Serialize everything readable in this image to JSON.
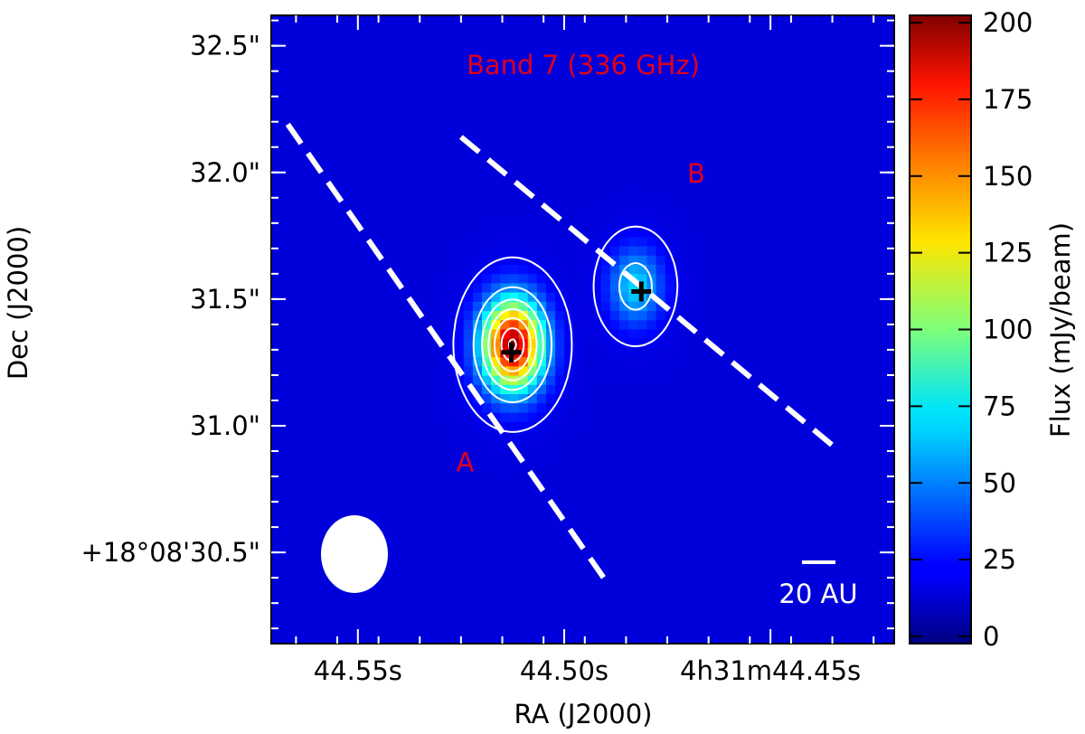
{
  "chart_data": {
    "type": "heatmap",
    "title": "Band 7 (336 GHz)",
    "xlabel": "RA (J2000)",
    "ylabel": "Dec (J2000)",
    "colorbar_label": "Flux (mJy/beam)",
    "colorbar_range": [
      0,
      200
    ],
    "colorbar_ticks": [
      0,
      25,
      50,
      75,
      100,
      125,
      150,
      175,
      200
    ],
    "colormap": "jet",
    "x_ticks": [
      {
        "value": 44.55,
        "label": "44.55s"
      },
      {
        "value": 44.5,
        "label": "44.50s"
      },
      {
        "value": 44.45,
        "label": "4h31m44.45s"
      }
    ],
    "x_range": [
      44.571,
      44.42
    ],
    "y_ticks": [
      {
        "value": 30.5,
        "label": "+18°08'30.5\""
      },
      {
        "value": 31.0,
        "label": "31.0\""
      },
      {
        "value": 31.5,
        "label": "31.5\""
      },
      {
        "value": 32.0,
        "label": "32.0\""
      },
      {
        "value": 32.5,
        "label": "32.5\""
      }
    ],
    "y_range": [
      30.14,
      32.62
    ],
    "background_flux": 18,
    "sources": [
      {
        "name": "A",
        "label_color": "#e0001c",
        "ra": 44.5125,
        "dec": 31.32,
        "peak_flux": 195,
        "sigma_ra": 0.0052,
        "sigma_dec": 0.125,
        "marker": {
          "ra": 44.5128,
          "dec": 31.29
        },
        "label_pos": {
          "ra": 44.524,
          "dec": 30.82
        }
      },
      {
        "name": "B",
        "label_color": "#e0001c",
        "ra": 44.4827,
        "dec": 31.55,
        "peak_flux": 68,
        "sigma_ra": 0.0045,
        "sigma_dec": 0.105,
        "marker": {
          "ra": 44.4813,
          "dec": 31.53
        },
        "label_pos": {
          "ra": 44.468,
          "dec": 31.96
        }
      }
    ],
    "contour_levels": [
      22,
      52,
      82,
      112,
      142,
      172,
      192
    ],
    "dashed_lines": [
      {
        "from": {
          "ra": 44.567,
          "dec": 32.19
        },
        "to": {
          "ra": 44.49,
          "dec": 30.39
        }
      },
      {
        "from": {
          "ra": 44.525,
          "dec": 32.14
        },
        "to": {
          "ra": 44.4333,
          "dec": 30.9
        }
      }
    ],
    "scale_bar": {
      "label": "20 AU"
    },
    "beam": {
      "ra": 44.5502,
      "dec": 30.49
    }
  }
}
